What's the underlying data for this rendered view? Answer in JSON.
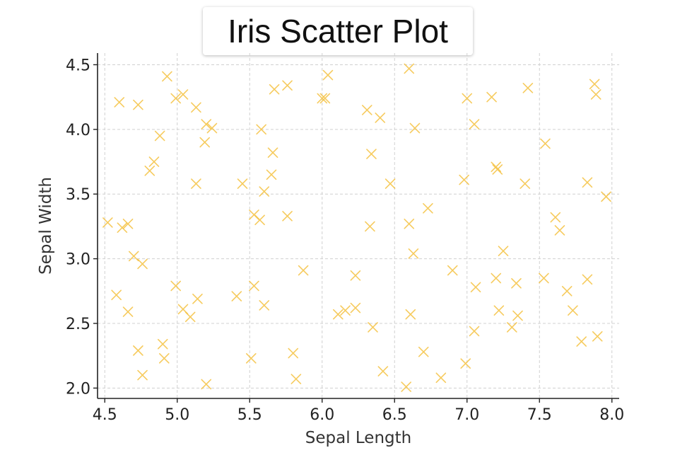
{
  "chart_data": {
    "type": "scatter",
    "title": "Iris Scatter Plot",
    "xlabel": "Sepal Length",
    "ylabel": "Sepal Width",
    "xlim": [
      4.45,
      8.05
    ],
    "ylim": [
      1.92,
      4.59
    ],
    "xticks": [
      4.5,
      5.0,
      5.5,
      6.0,
      6.5,
      7.0,
      7.5,
      8.0
    ],
    "xtick_labels": [
      "4.5",
      "5.0",
      "5.5",
      "6.0",
      "6.5",
      "7.0",
      "7.5",
      "8.0"
    ],
    "yticks": [
      2.0,
      2.5,
      3.0,
      3.5,
      4.0,
      4.5
    ],
    "ytick_labels": [
      "2.0",
      "2.5",
      "3.0",
      "3.5",
      "4.0",
      "4.5"
    ],
    "grid": true,
    "marker": "x",
    "marker_color": "#f5c242",
    "series": [
      {
        "points": [
          [
            4.52,
            3.28
          ],
          [
            4.58,
            2.72
          ],
          [
            4.6,
            4.21
          ],
          [
            4.62,
            3.24
          ],
          [
            4.66,
            3.27
          ],
          [
            4.66,
            2.59
          ],
          [
            4.7,
            3.02
          ],
          [
            4.73,
            4.19
          ],
          [
            4.73,
            2.29
          ],
          [
            4.76,
            2.96
          ],
          [
            4.76,
            2.1
          ],
          [
            4.81,
            3.68
          ],
          [
            4.84,
            3.75
          ],
          [
            4.88,
            3.95
          ],
          [
            4.9,
            2.34
          ],
          [
            4.91,
            2.23
          ],
          [
            4.93,
            4.41
          ],
          [
            4.99,
            4.24
          ],
          [
            4.99,
            2.79
          ],
          [
            5.04,
            4.27
          ],
          [
            5.04,
            2.61
          ],
          [
            5.09,
            2.55
          ],
          [
            5.13,
            3.58
          ],
          [
            5.13,
            4.17
          ],
          [
            5.14,
            2.69
          ],
          [
            5.19,
            3.9
          ],
          [
            5.2,
            4.04
          ],
          [
            5.24,
            4.01
          ],
          [
            5.2,
            2.03
          ],
          [
            5.41,
            2.71
          ],
          [
            5.45,
            3.58
          ],
          [
            5.51,
            2.23
          ],
          [
            5.53,
            2.79
          ],
          [
            5.53,
            3.34
          ],
          [
            5.57,
            3.3
          ],
          [
            5.58,
            4.0
          ],
          [
            5.6,
            3.52
          ],
          [
            5.6,
            2.64
          ],
          [
            5.65,
            3.65
          ],
          [
            5.66,
            3.82
          ],
          [
            5.67,
            4.31
          ],
          [
            5.76,
            4.34
          ],
          [
            5.76,
            3.33
          ],
          [
            5.8,
            2.27
          ],
          [
            5.82,
            2.07
          ],
          [
            5.87,
            2.91
          ],
          [
            6.0,
            4.24
          ],
          [
            6.02,
            4.24
          ],
          [
            6.04,
            4.42
          ],
          [
            6.11,
            2.57
          ],
          [
            6.16,
            2.6
          ],
          [
            6.23,
            2.62
          ],
          [
            6.23,
            2.87
          ],
          [
            6.31,
            4.15
          ],
          [
            6.33,
            3.25
          ],
          [
            6.34,
            3.81
          ],
          [
            6.35,
            2.47
          ],
          [
            6.4,
            4.09
          ],
          [
            6.42,
            2.13
          ],
          [
            6.47,
            3.58
          ],
          [
            6.58,
            2.01
          ],
          [
            6.6,
            3.27
          ],
          [
            6.6,
            4.47
          ],
          [
            6.61,
            2.57
          ],
          [
            6.63,
            3.04
          ],
          [
            6.64,
            4.01
          ],
          [
            6.7,
            2.28
          ],
          [
            6.73,
            3.39
          ],
          [
            6.82,
            2.08
          ],
          [
            6.9,
            2.91
          ],
          [
            6.98,
            3.61
          ],
          [
            6.99,
            2.19
          ],
          [
            7.0,
            4.24
          ],
          [
            7.05,
            2.44
          ],
          [
            7.05,
            4.04
          ],
          [
            7.06,
            2.78
          ],
          [
            7.17,
            4.25
          ],
          [
            7.2,
            2.85
          ],
          [
            7.2,
            3.71
          ],
          [
            7.21,
            3.69
          ],
          [
            7.22,
            2.6
          ],
          [
            7.25,
            3.06
          ],
          [
            7.31,
            2.47
          ],
          [
            7.34,
            2.81
          ],
          [
            7.35,
            2.56
          ],
          [
            7.4,
            3.58
          ],
          [
            7.42,
            4.32
          ],
          [
            7.53,
            2.85
          ],
          [
            7.54,
            3.89
          ],
          [
            7.61,
            3.32
          ],
          [
            7.64,
            3.22
          ],
          [
            7.69,
            2.75
          ],
          [
            7.73,
            2.6
          ],
          [
            7.79,
            2.36
          ],
          [
            7.83,
            3.59
          ],
          [
            7.83,
            2.84
          ],
          [
            7.88,
            4.35
          ],
          [
            7.89,
            4.27
          ],
          [
            7.9,
            2.4
          ],
          [
            7.96,
            3.48
          ]
        ]
      }
    ]
  }
}
